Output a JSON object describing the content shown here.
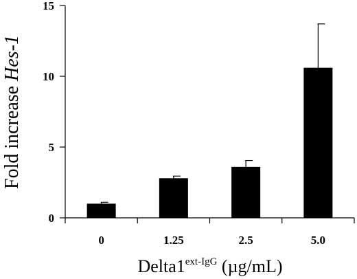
{
  "chart_data": {
    "type": "bar",
    "categories": [
      "0",
      "1.25",
      "2.5",
      "5.0"
    ],
    "values": [
      1.0,
      2.8,
      3.6,
      10.6
    ],
    "error_bars": [
      0.1,
      0.15,
      0.45,
      3.1
    ],
    "ylim": [
      0,
      15
    ],
    "yticks": [
      "0",
      "5",
      "10",
      "15"
    ],
    "ylabel": {
      "text": "Fold increase ",
      "italic": "Hes-1"
    },
    "xlabel": {
      "text": "Delta1",
      "superscript": "ext-IgG",
      "units": " (µg/mL)"
    },
    "grid": false,
    "legend": "none",
    "colors": {
      "bar": "#000000",
      "axis": "#000000",
      "background": "#ffffff"
    }
  }
}
